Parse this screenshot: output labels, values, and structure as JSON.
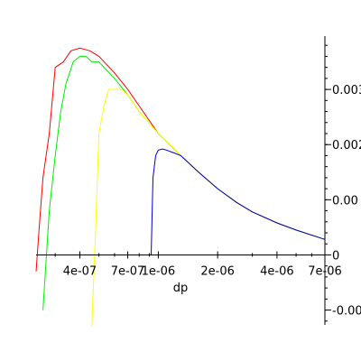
{
  "chart_data": {
    "type": "line",
    "title": "",
    "xlabel": "dp",
    "ylabel": "",
    "x_scale": "log",
    "xlim": [
      2.4e-07,
      7e-06
    ],
    "ylim": [
      -0.0014,
      0.004
    ],
    "x_ticks": [
      {
        "value": 4e-07,
        "label": "4e-07"
      },
      {
        "value": 7e-07,
        "label": "7e-07"
      },
      {
        "value": 1e-06,
        "label": "1e-06"
      },
      {
        "value": 2e-06,
        "label": "2e-06"
      },
      {
        "value": 4e-06,
        "label": "4e-06"
      },
      {
        "value": 7e-06,
        "label": "7e-06"
      }
    ],
    "y_ticks": [
      {
        "value": -0.001,
        "label": "-0.00"
      },
      {
        "value": 0,
        "label": "0"
      },
      {
        "value": 0.001,
        "label": "0.00"
      },
      {
        "value": 0.002,
        "label": "0.002"
      },
      {
        "value": 0.003,
        "label": "0.003"
      }
    ],
    "grid": false,
    "series": [
      {
        "color": "#ff0000",
        "x": [
          2.4e-07,
          2.5e-07,
          2.6e-07,
          2.8e-07,
          3e-07,
          3.3e-07,
          3.6e-07,
          4e-07,
          4.5e-07,
          5e-07,
          6e-07,
          7e-07,
          8e-07,
          1e-06,
          1.3e-06,
          1.6e-06,
          2e-06,
          2.5e-06,
          3e-06,
          4e-06,
          5e-06,
          7e-06
        ],
        "y": [
          -0.0003,
          0.0006,
          0.0014,
          0.0022,
          0.0034,
          0.0035,
          0.0037,
          0.00375,
          0.0037,
          0.0036,
          0.0033,
          0.003,
          0.0027,
          0.0022,
          0.0018,
          0.0015,
          0.0012,
          0.00095,
          0.00078,
          0.00058,
          0.00045,
          0.00028
        ]
      },
      {
        "color": "#00ee00",
        "x": [
          2.6e-07,
          2.8e-07,
          3e-07,
          3.2e-07,
          3.4e-07,
          3.7e-07,
          4e-07,
          4.3e-07,
          4.6e-07,
          5e-07,
          6e-07,
          7e-07,
          8e-07,
          1e-06,
          1.3e-06,
          1.6e-06,
          2e-06,
          2.5e-06,
          3e-06,
          4e-06,
          5e-06,
          7e-06
        ],
        "y": [
          -0.001,
          0.0008,
          0.0018,
          0.0026,
          0.0031,
          0.0035,
          0.0036,
          0.0036,
          0.0035,
          0.0035,
          0.0032,
          0.0029,
          0.0026,
          0.0022,
          0.0018,
          0.0015,
          0.0012,
          0.00095,
          0.00078,
          0.00058,
          0.00045,
          0.00028
        ]
      },
      {
        "color": "#ffff00",
        "x": [
          4.6e-07,
          4.8e-07,
          5e-07,
          5.3e-07,
          5.6e-07,
          6e-07,
          6.5e-07,
          7e-07,
          8e-07,
          1e-06,
          1.3e-06,
          1.6e-06,
          2e-06,
          2.5e-06,
          3e-06,
          4e-06,
          5e-06,
          7e-06
        ],
        "y": [
          -0.0013,
          0.0004,
          0.0022,
          0.0027,
          0.003,
          0.003,
          0.003,
          0.0029,
          0.0026,
          0.0022,
          0.0018,
          0.0015,
          0.0012,
          0.00095,
          0.00078,
          0.00058,
          0.00045,
          0.00028
        ]
      },
      {
        "color": "#0000cc",
        "x": [
          9.2e-07,
          9.4e-07,
          9.7e-07,
          1e-06,
          1.05e-06,
          1.1e-06,
          1.2e-06,
          1.3e-06,
          1.6e-06,
          2e-06,
          2.5e-06,
          3e-06,
          4e-06,
          5e-06,
          7e-06
        ],
        "y": [
          0.0,
          0.0014,
          0.0018,
          0.0019,
          0.00192,
          0.0019,
          0.00185,
          0.0018,
          0.0015,
          0.0012,
          0.00095,
          0.00078,
          0.00058,
          0.00045,
          0.00028
        ]
      }
    ]
  }
}
